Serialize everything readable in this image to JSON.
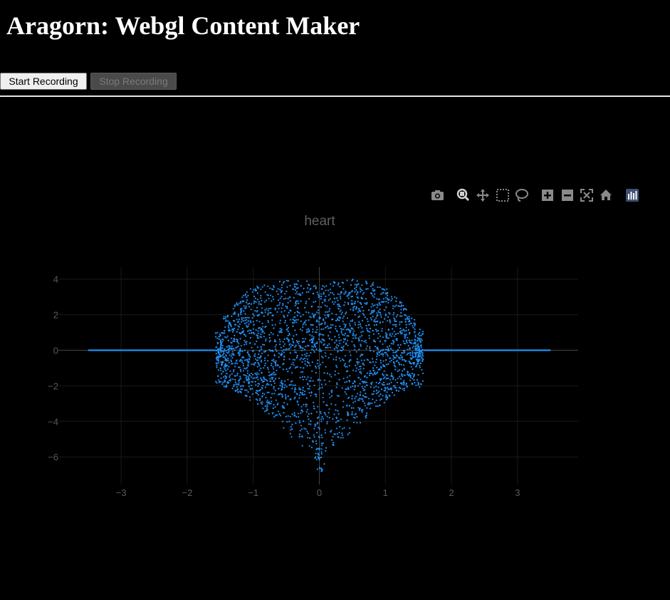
{
  "page": {
    "title": "Aragorn: Webgl Content Maker",
    "start_label": "Start Recording",
    "stop_label": "Stop Recording"
  },
  "modebar": {
    "icons": [
      "camera-icon",
      "zoom-icon",
      "pan-icon",
      "box-select-icon",
      "lasso-select-icon",
      "zoom-in-icon",
      "zoom-out-icon",
      "autoscale-icon",
      "reset-axes-icon",
      "plotly-logo-icon"
    ]
  },
  "colors": {
    "marker": "#1f8ef1",
    "axis_text": "#5a5a5a",
    "grid": "#1a1a1a"
  },
  "chart_data": {
    "type": "scatter",
    "title": "heart",
    "xlabel": "",
    "ylabel": "",
    "xlim": [
      -4.2,
      4.0
    ],
    "ylim": [
      -7.7,
      4.7
    ],
    "xticks": [
      -3,
      -2,
      -1,
      0,
      1,
      2,
      3
    ],
    "yticks": [
      4,
      2,
      0,
      -2,
      -4,
      -6
    ],
    "grid": true,
    "series": [
      {
        "shape": "heart (approx. 3000 points)",
        "x_range": [
          -1.57,
          1.57
        ],
        "y_range": [
          -6.9,
          4.0
        ],
        "line_y0_x": [
          [
            -3.5,
            -1.57
          ],
          [
            1.57,
            3.5
          ]
        ]
      }
    ]
  }
}
